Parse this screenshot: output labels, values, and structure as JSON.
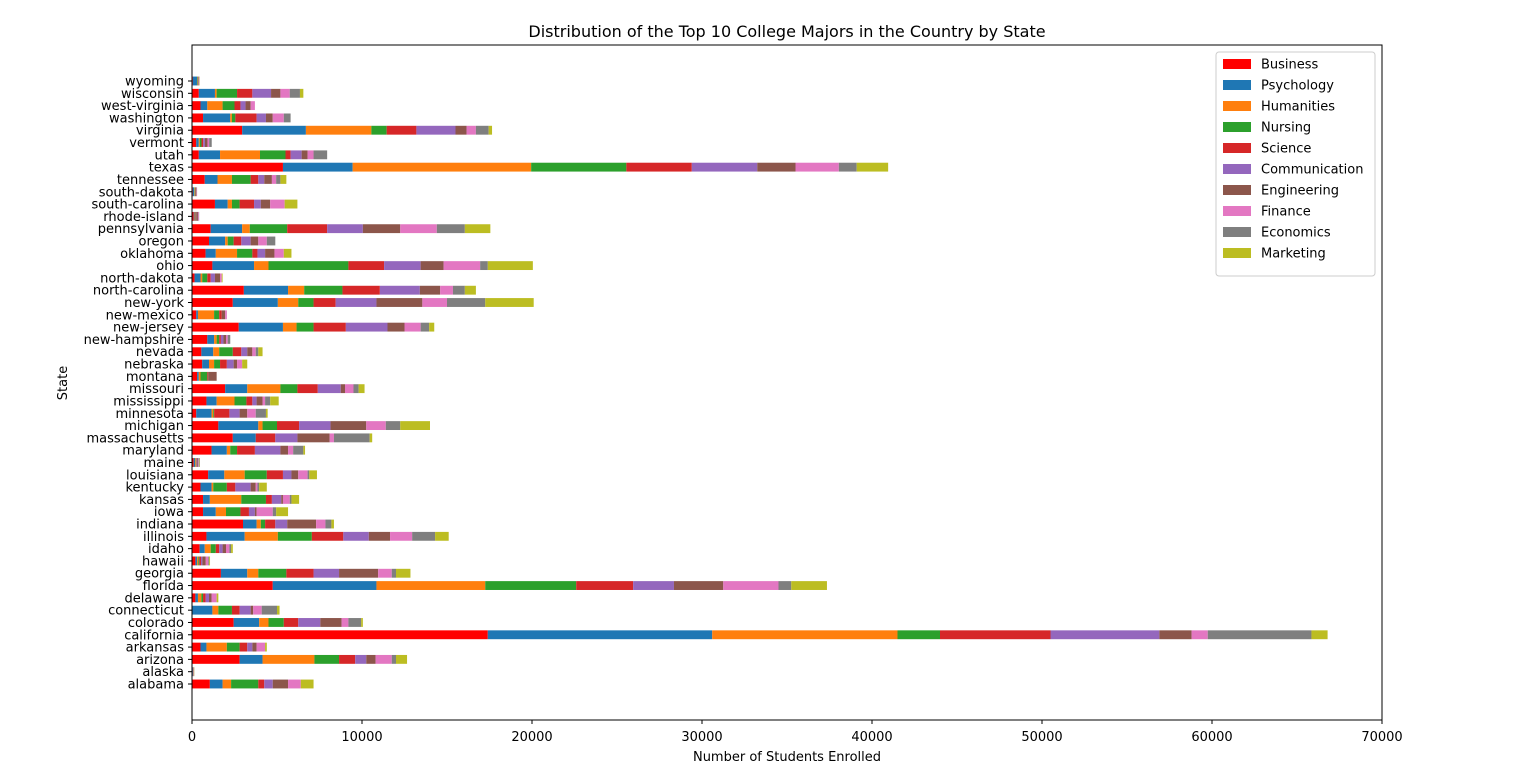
{
  "chart_data": {
    "type": "bar",
    "orientation": "horizontal",
    "stacked": true,
    "title": "Distribution of the Top 10 College Majors in the Country by State",
    "xlabel": "Number of Students Enrolled",
    "ylabel": "State",
    "xlim": [
      0,
      70000
    ],
    "xticks": [
      0,
      10000,
      20000,
      30000,
      40000,
      50000,
      60000,
      70000
    ],
    "legend_position": "top-right",
    "grid": false,
    "colors": [
      "#ff0000",
      "#1f77b4",
      "#ff7f0e",
      "#2ca02c",
      "#d62728",
      "#9467bd",
      "#8c564b",
      "#e377c2",
      "#7f7f7f",
      "#bcbd22"
    ],
    "categories": [
      "alabama",
      "alaska",
      "arizona",
      "arkansas",
      "california",
      "colorado",
      "connecticut",
      "delaware",
      "florida",
      "georgia",
      "hawaii",
      "idaho",
      "illinois",
      "indiana",
      "iowa",
      "kansas",
      "kentucky",
      "louisiana",
      "maine",
      "maryland",
      "massachusetts",
      "michigan",
      "minnesota",
      "mississippi",
      "missouri",
      "montana",
      "nebraska",
      "nevada",
      "new-hampshire",
      "new-jersey",
      "new-mexico",
      "new-york",
      "north-carolina",
      "north-dakota",
      "ohio",
      "oklahoma",
      "oregon",
      "pennsylvania",
      "rhode-island",
      "south-carolina",
      "south-dakota",
      "tennessee",
      "texas",
      "utah",
      "vermont",
      "virginia",
      "washington",
      "west-virginia",
      "wisconsin",
      "wyoming"
    ],
    "series": [
      {
        "name": "Business",
        "values": [
          1050,
          40,
          2800,
          500,
          17400,
          2450,
          0,
          200,
          4750,
          1700,
          200,
          450,
          850,
          3000,
          650,
          650,
          500,
          950,
          100,
          1150,
          2400,
          1550,
          250,
          850,
          1950,
          300,
          600,
          550,
          900,
          2750,
          250,
          2400,
          3050,
          150,
          1200,
          800,
          1000,
          1100,
          100,
          1350,
          50,
          750,
          5350,
          400,
          250,
          2950,
          650,
          500,
          400,
          50
        ]
      },
      {
        "name": "Psychology",
        "values": [
          750,
          20,
          1350,
          350,
          13200,
          1500,
          1200,
          150,
          6100,
          1550,
          100,
          300,
          2250,
          800,
          750,
          400,
          650,
          950,
          80,
          900,
          1350,
          2350,
          900,
          600,
          1300,
          100,
          400,
          700,
          400,
          2600,
          100,
          2650,
          2600,
          350,
          2450,
          600,
          950,
          1850,
          50,
          750,
          80,
          750,
          4100,
          1250,
          150,
          3750,
          1600,
          400,
          950,
          250
        ]
      },
      {
        "name": "Humanities",
        "values": [
          500,
          10,
          3050,
          1200,
          10900,
          550,
          350,
          200,
          6400,
          650,
          70,
          350,
          1950,
          250,
          600,
          1850,
          100,
          1200,
          40,
          200,
          0,
          250,
          100,
          1050,
          1950,
          100,
          300,
          350,
          150,
          800,
          950,
          1200,
          950,
          100,
          850,
          1250,
          150,
          450,
          30,
          250,
          30,
          850,
          10500,
          2350,
          60,
          3850,
          100,
          900,
          100,
          20
        ]
      },
      {
        "name": "Nursing",
        "values": [
          1600,
          10,
          1450,
          750,
          2500,
          900,
          800,
          100,
          5350,
          1650,
          60,
          300,
          2000,
          250,
          850,
          1450,
          800,
          1300,
          30,
          400,
          0,
          850,
          50,
          700,
          1000,
          400,
          350,
          800,
          150,
          1000,
          300,
          900,
          2250,
          300,
          4700,
          900,
          350,
          2200,
          20,
          450,
          40,
          1100,
          5600,
          1500,
          100,
          900,
          200,
          700,
          1200,
          30
        ]
      },
      {
        "name": "Science",
        "values": [
          350,
          10,
          950,
          450,
          6500,
          850,
          450,
          150,
          3350,
          1600,
          100,
          200,
          1850,
          600,
          500,
          350,
          500,
          950,
          30,
          1050,
          1150,
          1300,
          900,
          350,
          1200,
          50,
          400,
          500,
          100,
          1900,
          150,
          1300,
          2200,
          200,
          2100,
          300,
          450,
          2350,
          30,
          850,
          30,
          450,
          3850,
          300,
          100,
          1750,
          1250,
          350,
          900,
          20
        ]
      },
      {
        "name": "Communication",
        "values": [
          500,
          10,
          650,
          300,
          6400,
          1300,
          650,
          200,
          2400,
          1500,
          80,
          200,
          1500,
          700,
          350,
          550,
          900,
          500,
          40,
          1500,
          1300,
          1850,
          600,
          250,
          1350,
          0,
          400,
          350,
          150,
          2450,
          0,
          2400,
          2350,
          250,
          2150,
          450,
          550,
          2100,
          20,
          400,
          20,
          350,
          3850,
          650,
          100,
          2300,
          550,
          300,
          1100,
          20
        ]
      },
      {
        "name": "Engineering",
        "values": [
          900,
          10,
          550,
          250,
          1900,
          1250,
          150,
          150,
          2900,
          2300,
          200,
          200,
          1250,
          1700,
          100,
          100,
          300,
          400,
          50,
          450,
          1900,
          2100,
          450,
          350,
          250,
          500,
          200,
          300,
          150,
          1000,
          200,
          2700,
          1200,
          300,
          1350,
          550,
          450,
          2200,
          100,
          550,
          30,
          450,
          2250,
          350,
          150,
          650,
          400,
          300,
          550,
          20
        ]
      },
      {
        "name": "Finance",
        "values": [
          750,
          10,
          950,
          500,
          950,
          400,
          500,
          300,
          3250,
          800,
          150,
          200,
          1300,
          550,
          950,
          400,
          100,
          550,
          30,
          300,
          250,
          1150,
          500,
          150,
          500,
          0,
          300,
          200,
          100,
          950,
          100,
          1450,
          750,
          100,
          2150,
          550,
          500,
          2150,
          50,
          850,
          20,
          250,
          2550,
          350,
          100,
          550,
          650,
          250,
          550,
          10
        ]
      },
      {
        "name": "Economics",
        "values": [
          0,
          10,
          250,
          0,
          6100,
          750,
          900,
          0,
          750,
          250,
          50,
          100,
          1350,
          350,
          200,
          100,
          100,
          100,
          40,
          600,
          2100,
          850,
          600,
          300,
          300,
          0,
          0,
          150,
          150,
          500,
          0,
          2250,
          700,
          0,
          450,
          0,
          500,
          1650,
          20,
          0,
          0,
          250,
          1050,
          800,
          150,
          750,
          400,
          0,
          600,
          10
        ]
      },
      {
        "name": "Marketing",
        "values": [
          750,
          10,
          650,
          100,
          950,
          100,
          150,
          100,
          2100,
          850,
          50,
          100,
          800,
          150,
          700,
          450,
          450,
          450,
          20,
          100,
          150,
          1750,
          100,
          500,
          350,
          0,
          300,
          250,
          0,
          300,
          0,
          2850,
          650,
          50,
          2650,
          450,
          0,
          1500,
          0,
          750,
          0,
          350,
          1850,
          0,
          0,
          200,
          0,
          0,
          200,
          20
        ]
      }
    ]
  }
}
